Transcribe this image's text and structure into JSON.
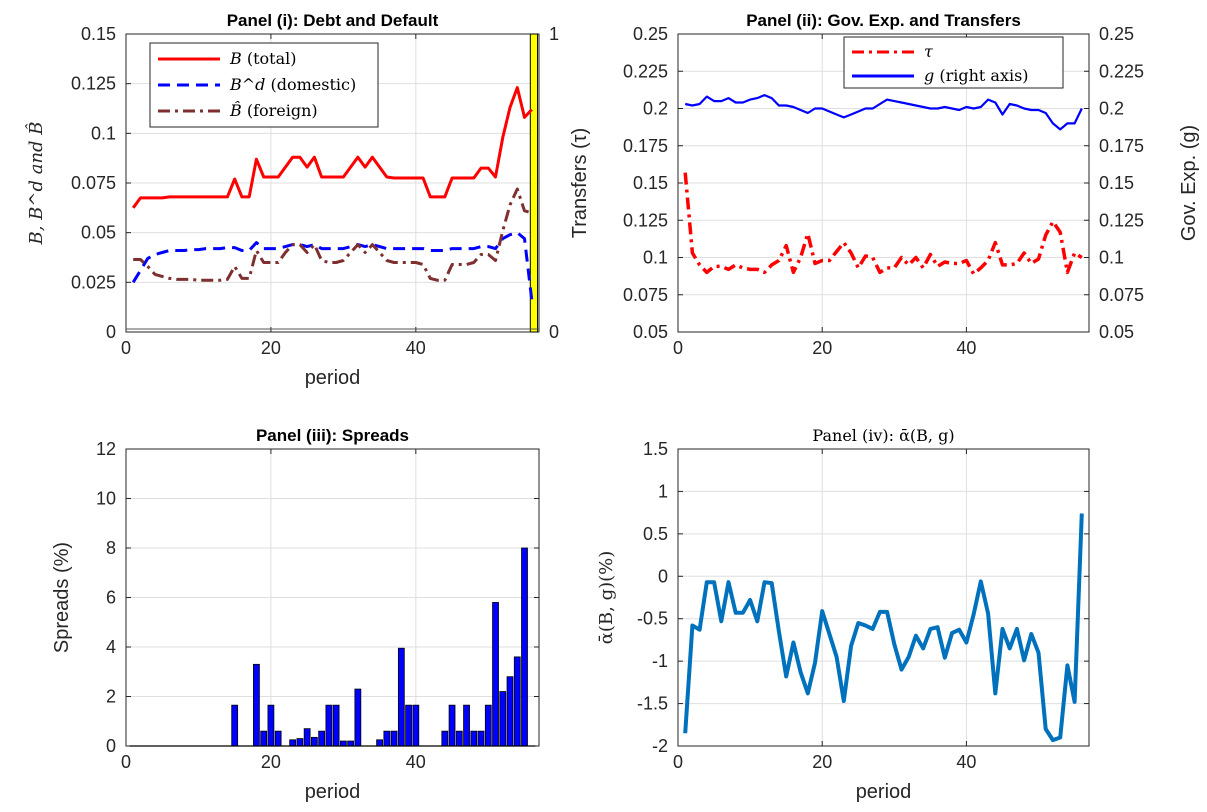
{
  "chart_data": [
    {
      "id": "p1",
      "type": "line",
      "title": "Panel (i): Debt and Default",
      "xlabel": "period",
      "ylabel": "B, B^d and B̂",
      "xlim": [
        0,
        57
      ],
      "ylim": [
        0,
        0.15
      ],
      "y2lim": [
        0,
        1
      ],
      "grid": true,
      "xticks": [
        "0",
        "20",
        "40"
      ],
      "yticks": [
        "0",
        "0.025",
        "0.05",
        "0.075",
        "0.1",
        "0.125",
        "0.15"
      ],
      "y2ticks": [
        "0",
        "1"
      ],
      "legend_position": "top-left",
      "shaded_region": {
        "x": [
          55.8,
          56.8
        ],
        "color": "#ffff00",
        "meaning": "default"
      },
      "series": [
        {
          "name": "(total)",
          "symbol": "B",
          "color": "#ff0000",
          "style": "solid",
          "x": [
            1,
            2,
            3,
            4,
            5,
            6,
            7,
            8,
            9,
            10,
            11,
            12,
            13,
            14,
            15,
            16,
            17,
            18,
            19,
            20,
            21,
            22,
            23,
            24,
            25,
            26,
            27,
            28,
            29,
            30,
            31,
            32,
            33,
            34,
            35,
            36,
            37,
            38,
            39,
            40,
            41,
            42,
            43,
            44,
            45,
            46,
            47,
            48,
            49,
            50,
            51,
            52,
            53,
            54,
            55,
            56
          ],
          "y": [
            0.0625,
            0.0675,
            0.0675,
            0.0675,
            0.0675,
            0.068,
            0.068,
            0.068,
            0.068,
            0.068,
            0.068,
            0.068,
            0.068,
            0.068,
            0.077,
            0.068,
            0.068,
            0.087,
            0.078,
            0.078,
            0.078,
            0.083,
            0.088,
            0.088,
            0.083,
            0.088,
            0.078,
            0.078,
            0.078,
            0.078,
            0.083,
            0.088,
            0.083,
            0.088,
            0.083,
            0.078,
            0.0775,
            0.0775,
            0.0775,
            0.0775,
            0.0775,
            0.068,
            0.068,
            0.068,
            0.0775,
            0.0775,
            0.0775,
            0.0775,
            0.0825,
            0.0825,
            0.078,
            0.098,
            0.113,
            0.123,
            0.108,
            0.112
          ]
        },
        {
          "name": "(domestic)",
          "symbol": "B^d",
          "color": "#0000ff",
          "style": "dashed",
          "x": [
            1,
            2,
            3,
            4,
            5,
            6,
            7,
            8,
            9,
            10,
            11,
            12,
            13,
            14,
            15,
            16,
            17,
            18,
            19,
            20,
            21,
            22,
            23,
            24,
            25,
            26,
            27,
            28,
            29,
            30,
            31,
            32,
            33,
            34,
            35,
            36,
            37,
            38,
            39,
            40,
            41,
            42,
            43,
            44,
            45,
            46,
            47,
            48,
            49,
            50,
            51,
            52,
            53,
            54,
            55,
            56
          ],
          "y": [
            0.025,
            0.031,
            0.037,
            0.039,
            0.04,
            0.041,
            0.041,
            0.041,
            0.0415,
            0.0415,
            0.042,
            0.042,
            0.042,
            0.0425,
            0.0425,
            0.041,
            0.041,
            0.045,
            0.042,
            0.042,
            0.042,
            0.043,
            0.044,
            0.044,
            0.043,
            0.044,
            0.042,
            0.042,
            0.042,
            0.042,
            0.043,
            0.044,
            0.043,
            0.044,
            0.043,
            0.042,
            0.042,
            0.042,
            0.042,
            0.042,
            0.042,
            0.041,
            0.041,
            0.041,
            0.042,
            0.042,
            0.042,
            0.042,
            0.043,
            0.043,
            0.042,
            0.047,
            0.049,
            0.05,
            0.047,
            0.016
          ]
        },
        {
          "name": "(foreign)",
          "symbol": "B̂",
          "color": "#7e2f2f",
          "style": "dashdot",
          "x": [
            1,
            2,
            3,
            4,
            5,
            6,
            7,
            8,
            9,
            10,
            11,
            12,
            13,
            14,
            15,
            16,
            17,
            18,
            19,
            20,
            21,
            22,
            23,
            24,
            25,
            26,
            27,
            28,
            29,
            30,
            31,
            32,
            33,
            34,
            35,
            36,
            37,
            38,
            39,
            40,
            41,
            42,
            43,
            44,
            45,
            46,
            47,
            48,
            49,
            50,
            51,
            52,
            53,
            54,
            55,
            56
          ],
          "y": [
            0.0365,
            0.0365,
            0.033,
            0.029,
            0.028,
            0.027,
            0.0265,
            0.0265,
            0.0265,
            0.026,
            0.026,
            0.026,
            0.026,
            0.0265,
            0.033,
            0.027,
            0.027,
            0.041,
            0.035,
            0.035,
            0.035,
            0.04,
            0.044,
            0.044,
            0.04,
            0.044,
            0.036,
            0.035,
            0.035,
            0.036,
            0.04,
            0.044,
            0.04,
            0.044,
            0.04,
            0.036,
            0.035,
            0.035,
            0.035,
            0.035,
            0.034,
            0.027,
            0.026,
            0.026,
            0.034,
            0.034,
            0.034,
            0.035,
            0.039,
            0.039,
            0.036,
            0.051,
            0.064,
            0.072,
            0.061,
            0.06
          ]
        }
      ]
    },
    {
      "id": "p2",
      "type": "line",
      "title": "Panel (ii): Gov. Exp. and Transfers",
      "xlabel": "",
      "ylabel": "Transfers (τ)",
      "y2label": "Gov. Exp. (g)",
      "xlim": [
        0,
        57
      ],
      "ylim": [
        0.05,
        0.25
      ],
      "y2lim": [
        0.05,
        0.25
      ],
      "grid": true,
      "xticks": [
        "0",
        "20",
        "40"
      ],
      "yticks": [
        "0.05",
        "0.075",
        "0.1",
        "0.125",
        "0.15",
        "0.175",
        "0.2",
        "0.225",
        "0.25"
      ],
      "y2ticks": [
        "0.05",
        "0.075",
        "0.1",
        "0.125",
        "0.15",
        "0.175",
        "0.2",
        "0.225",
        "0.25"
      ],
      "legend_position": "top-right",
      "series": [
        {
          "name": "",
          "symbol": "τ",
          "color": "#ff0000",
          "style": "dashdot",
          "x": [
            1,
            2,
            3,
            4,
            5,
            6,
            7,
            8,
            9,
            10,
            11,
            12,
            13,
            14,
            15,
            16,
            17,
            18,
            19,
            20,
            21,
            22,
            23,
            24,
            25,
            26,
            27,
            28,
            29,
            30,
            31,
            32,
            33,
            34,
            35,
            36,
            37,
            38,
            39,
            40,
            41,
            42,
            43,
            44,
            45,
            46,
            47,
            48,
            49,
            50,
            51,
            52,
            53,
            54,
            55,
            56
          ],
          "y": [
            0.157,
            0.103,
            0.095,
            0.09,
            0.094,
            0.094,
            0.092,
            0.095,
            0.093,
            0.092,
            0.092,
            0.09,
            0.095,
            0.098,
            0.108,
            0.09,
            0.1,
            0.116,
            0.096,
            0.098,
            0.098,
            0.104,
            0.11,
            0.103,
            0.093,
            0.101,
            0.1,
            0.09,
            0.093,
            0.093,
            0.1,
            0.095,
            0.1,
            0.093,
            0.102,
            0.094,
            0.097,
            0.096,
            0.096,
            0.098,
            0.089,
            0.093,
            0.098,
            0.11,
            0.095,
            0.095,
            0.096,
            0.103,
            0.096,
            0.099,
            0.115,
            0.124,
            0.117,
            0.09,
            0.103,
            0.1
          ]
        },
        {
          "name": "(right axis)",
          "symbol": "g",
          "color": "#0000ff",
          "style": "solid",
          "x": [
            1,
            2,
            3,
            4,
            5,
            6,
            7,
            8,
            9,
            10,
            11,
            12,
            13,
            14,
            15,
            16,
            17,
            18,
            19,
            20,
            21,
            22,
            23,
            24,
            25,
            26,
            27,
            28,
            29,
            30,
            31,
            32,
            33,
            34,
            35,
            36,
            37,
            38,
            39,
            40,
            41,
            42,
            43,
            44,
            45,
            46,
            47,
            48,
            49,
            50,
            51,
            52,
            53,
            54,
            55,
            56
          ],
          "y": [
            0.203,
            0.202,
            0.203,
            0.208,
            0.205,
            0.205,
            0.207,
            0.204,
            0.204,
            0.206,
            0.207,
            0.209,
            0.207,
            0.202,
            0.202,
            0.201,
            0.199,
            0.197,
            0.2,
            0.2,
            0.198,
            0.196,
            0.194,
            0.196,
            0.198,
            0.2,
            0.2,
            0.203,
            0.206,
            0.205,
            0.204,
            0.203,
            0.202,
            0.201,
            0.2,
            0.2,
            0.201,
            0.2,
            0.199,
            0.201,
            0.2,
            0.201,
            0.206,
            0.204,
            0.196,
            0.203,
            0.202,
            0.2,
            0.199,
            0.199,
            0.197,
            0.19,
            0.186,
            0.19,
            0.19,
            0.2
          ]
        }
      ]
    },
    {
      "id": "p3",
      "type": "bar",
      "title": "Panel (iii): Spreads",
      "xlabel": "period",
      "ylabel": "Spreads (%)",
      "xlim": [
        0,
        57
      ],
      "ylim": [
        0,
        12
      ],
      "grid": true,
      "xticks": [
        "0",
        "20",
        "40"
      ],
      "yticks": [
        "0",
        "2",
        "4",
        "6",
        "8",
        "10",
        "12"
      ],
      "series": [
        {
          "name": "",
          "color": "#0000ff",
          "x": [
            1,
            2,
            3,
            4,
            5,
            6,
            7,
            8,
            9,
            10,
            11,
            12,
            13,
            14,
            15,
            16,
            17,
            18,
            19,
            20,
            21,
            22,
            23,
            24,
            25,
            26,
            27,
            28,
            29,
            30,
            31,
            32,
            33,
            34,
            35,
            36,
            37,
            38,
            39,
            40,
            41,
            42,
            43,
            44,
            45,
            46,
            47,
            48,
            49,
            50,
            51,
            52,
            53,
            54,
            55,
            56
          ],
          "y": [
            0,
            0,
            0,
            0,
            0,
            0,
            0,
            0,
            0,
            0,
            0,
            0,
            0,
            0,
            1.65,
            0,
            0,
            3.3,
            0.6,
            1.65,
            0.6,
            0,
            0.25,
            0.3,
            0.7,
            0.35,
            0.6,
            1.65,
            1.65,
            0.2,
            0.2,
            2.3,
            0,
            0,
            0.25,
            0.6,
            0.6,
            3.95,
            1.65,
            1.65,
            0,
            0,
            0,
            0.6,
            1.65,
            0.6,
            1.65,
            0.6,
            0.6,
            1.65,
            5.8,
            2.2,
            2.8,
            3.6,
            8.0,
            0
          ]
        }
      ]
    },
    {
      "id": "p4",
      "type": "line",
      "title": "Panel (iv): ᾱ(B, g)",
      "xlabel": "period",
      "ylabel": "ᾱ(B, g)(%)",
      "xlim": [
        0,
        57
      ],
      "ylim": [
        -2,
        1.5
      ],
      "grid": true,
      "xticks": [
        "0",
        "20",
        "40"
      ],
      "yticks": [
        "-2",
        "-1.5",
        "-1",
        "-0.5",
        "0",
        "0.5",
        "1",
        "1.5"
      ],
      "series": [
        {
          "name": "",
          "color": "#0072bd",
          "style": "solid",
          "x": [
            1,
            2,
            3,
            4,
            5,
            6,
            7,
            8,
            9,
            10,
            11,
            12,
            13,
            14,
            15,
            16,
            17,
            18,
            19,
            20,
            21,
            22,
            23,
            24,
            25,
            26,
            27,
            28,
            29,
            30,
            31,
            32,
            33,
            34,
            35,
            36,
            37,
            38,
            39,
            40,
            41,
            42,
            43,
            44,
            45,
            46,
            47,
            48,
            49,
            50,
            51,
            52,
            53,
            54,
            55,
            56
          ],
          "y": [
            -1.85,
            -0.58,
            -0.63,
            -0.07,
            -0.07,
            -0.53,
            -0.07,
            -0.43,
            -0.43,
            -0.28,
            -0.53,
            -0.07,
            -0.08,
            -0.65,
            -1.18,
            -0.78,
            -1.13,
            -1.38,
            -1.02,
            -0.41,
            -0.68,
            -0.95,
            -1.47,
            -0.82,
            -0.55,
            -0.58,
            -0.62,
            -0.42,
            -0.42,
            -0.8,
            -1.1,
            -0.95,
            -0.7,
            -0.85,
            -0.62,
            -0.6,
            -0.96,
            -0.67,
            -0.63,
            -0.78,
            -0.45,
            -0.06,
            -0.44,
            -1.38,
            -0.62,
            -0.85,
            -0.62,
            -0.99,
            -0.68,
            -0.9,
            -1.8,
            -1.93,
            -1.9,
            -1.05,
            -1.48,
            0.74
          ]
        }
      ]
    }
  ]
}
